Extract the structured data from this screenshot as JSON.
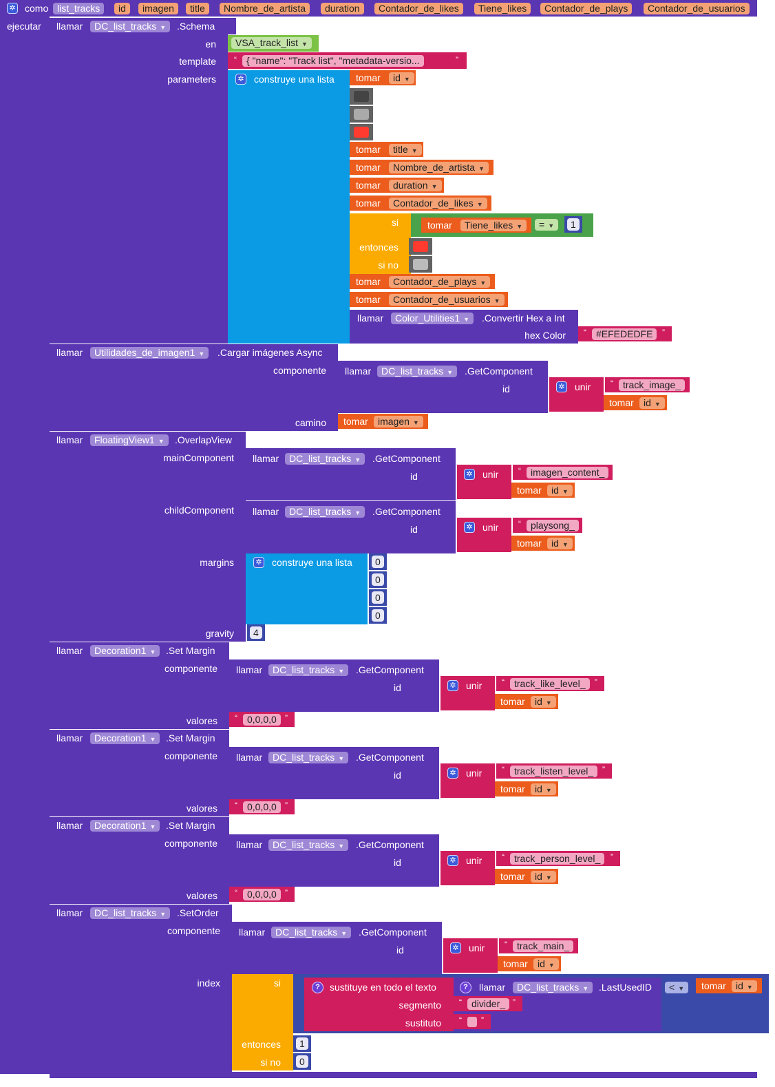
{
  "header": {
    "como": "como",
    "proc_name": "list_tracks",
    "params": [
      "id",
      "imagen",
      "title",
      "Nombre_de_artista",
      "duration",
      "Contador_de_likes",
      "Tiene_likes",
      "Contador_de_plays",
      "Contador_de_usuarios"
    ],
    "ejecutar": "ejecutar"
  },
  "words": {
    "llamar": "llamar",
    "tomar": "tomar",
    "unir": "unir",
    "si": "si",
    "entonces": "entonces",
    "si_no": "si no",
    "construye_lista": "construye una lista",
    "componente": "componente",
    "valores": "valores",
    "id": "id"
  },
  "schema": {
    "component": "DC_list_tracks",
    "method": ".Schema",
    "en_label": "en",
    "en_value": "VSA_track_list",
    "template_label": "template",
    "template_value": "{      \"name\": \"Track list\",      \"metadata-versio...",
    "parameters_label": "parameters",
    "list_vars": [
      "id",
      "title",
      "Nombre_de_artista",
      "duration",
      "Contador_de_likes",
      "Contador_de_plays",
      "Contador_de_usuarios"
    ],
    "swatch_colors": [
      "#444444",
      "#aaaaaa",
      "#ff3b30"
    ],
    "if_var": "Tiene_likes",
    "if_op": "=",
    "if_value": "1",
    "then_color": "#ff3b30",
    "else_color": "#bbbbbb",
    "color_component": "Color_Utilities1",
    "color_method": ".Convertir Hex a Int",
    "hex_label": "hex Color",
    "hex_value": "#EFEDEDFE"
  },
  "load_images": {
    "component": "Utilidades_de_imagen1",
    "method": ".Cargar imágenes Async",
    "getcomp_component": "DC_list_tracks",
    "getcomp_method": ".GetComponent",
    "join_text": "track_image_",
    "camino_label": "camino",
    "camino_var": "imagen"
  },
  "overlay": {
    "component": "FloatingView1",
    "method": ".OverlapView",
    "main_label": "mainComponent",
    "main_text": "imagen_content_",
    "child_label": "childComponent",
    "child_text": "playsong_",
    "margins_label": "margins",
    "margins": [
      "0",
      "0",
      "0",
      "0"
    ],
    "gravity_label": "gravity",
    "gravity": "4"
  },
  "margins": [
    {
      "component": "Decoration1",
      "method": ".Set Margin",
      "text": "track_like_level_",
      "value": "0,0,0,0"
    },
    {
      "component": "Decoration1",
      "method": ".Set Margin",
      "text": "track_listen_level_",
      "value": "0,0,0,0"
    },
    {
      "component": "Decoration1",
      "method": ".Set Margin",
      "text": "track_person_level_",
      "value": "0,0,0,0"
    }
  ],
  "set_order": {
    "component": "DC_list_tracks",
    "method": ".SetOrder",
    "index_label": "index",
    "join_text": "track_main_",
    "replace_label": "sustituye en todo el texto",
    "lastid_component": "DC_list_tracks",
    "lastid_method": ".LastUsedID",
    "segmento_label": "segmento",
    "segmento_value": "divider_",
    "sustituto_label": "sustituto",
    "compare_op": "<",
    "then_value": "1",
    "else_value": "0"
  },
  "common": {
    "getcomp_component": "DC_list_tracks",
    "getcomp_method": ".GetComponent"
  }
}
